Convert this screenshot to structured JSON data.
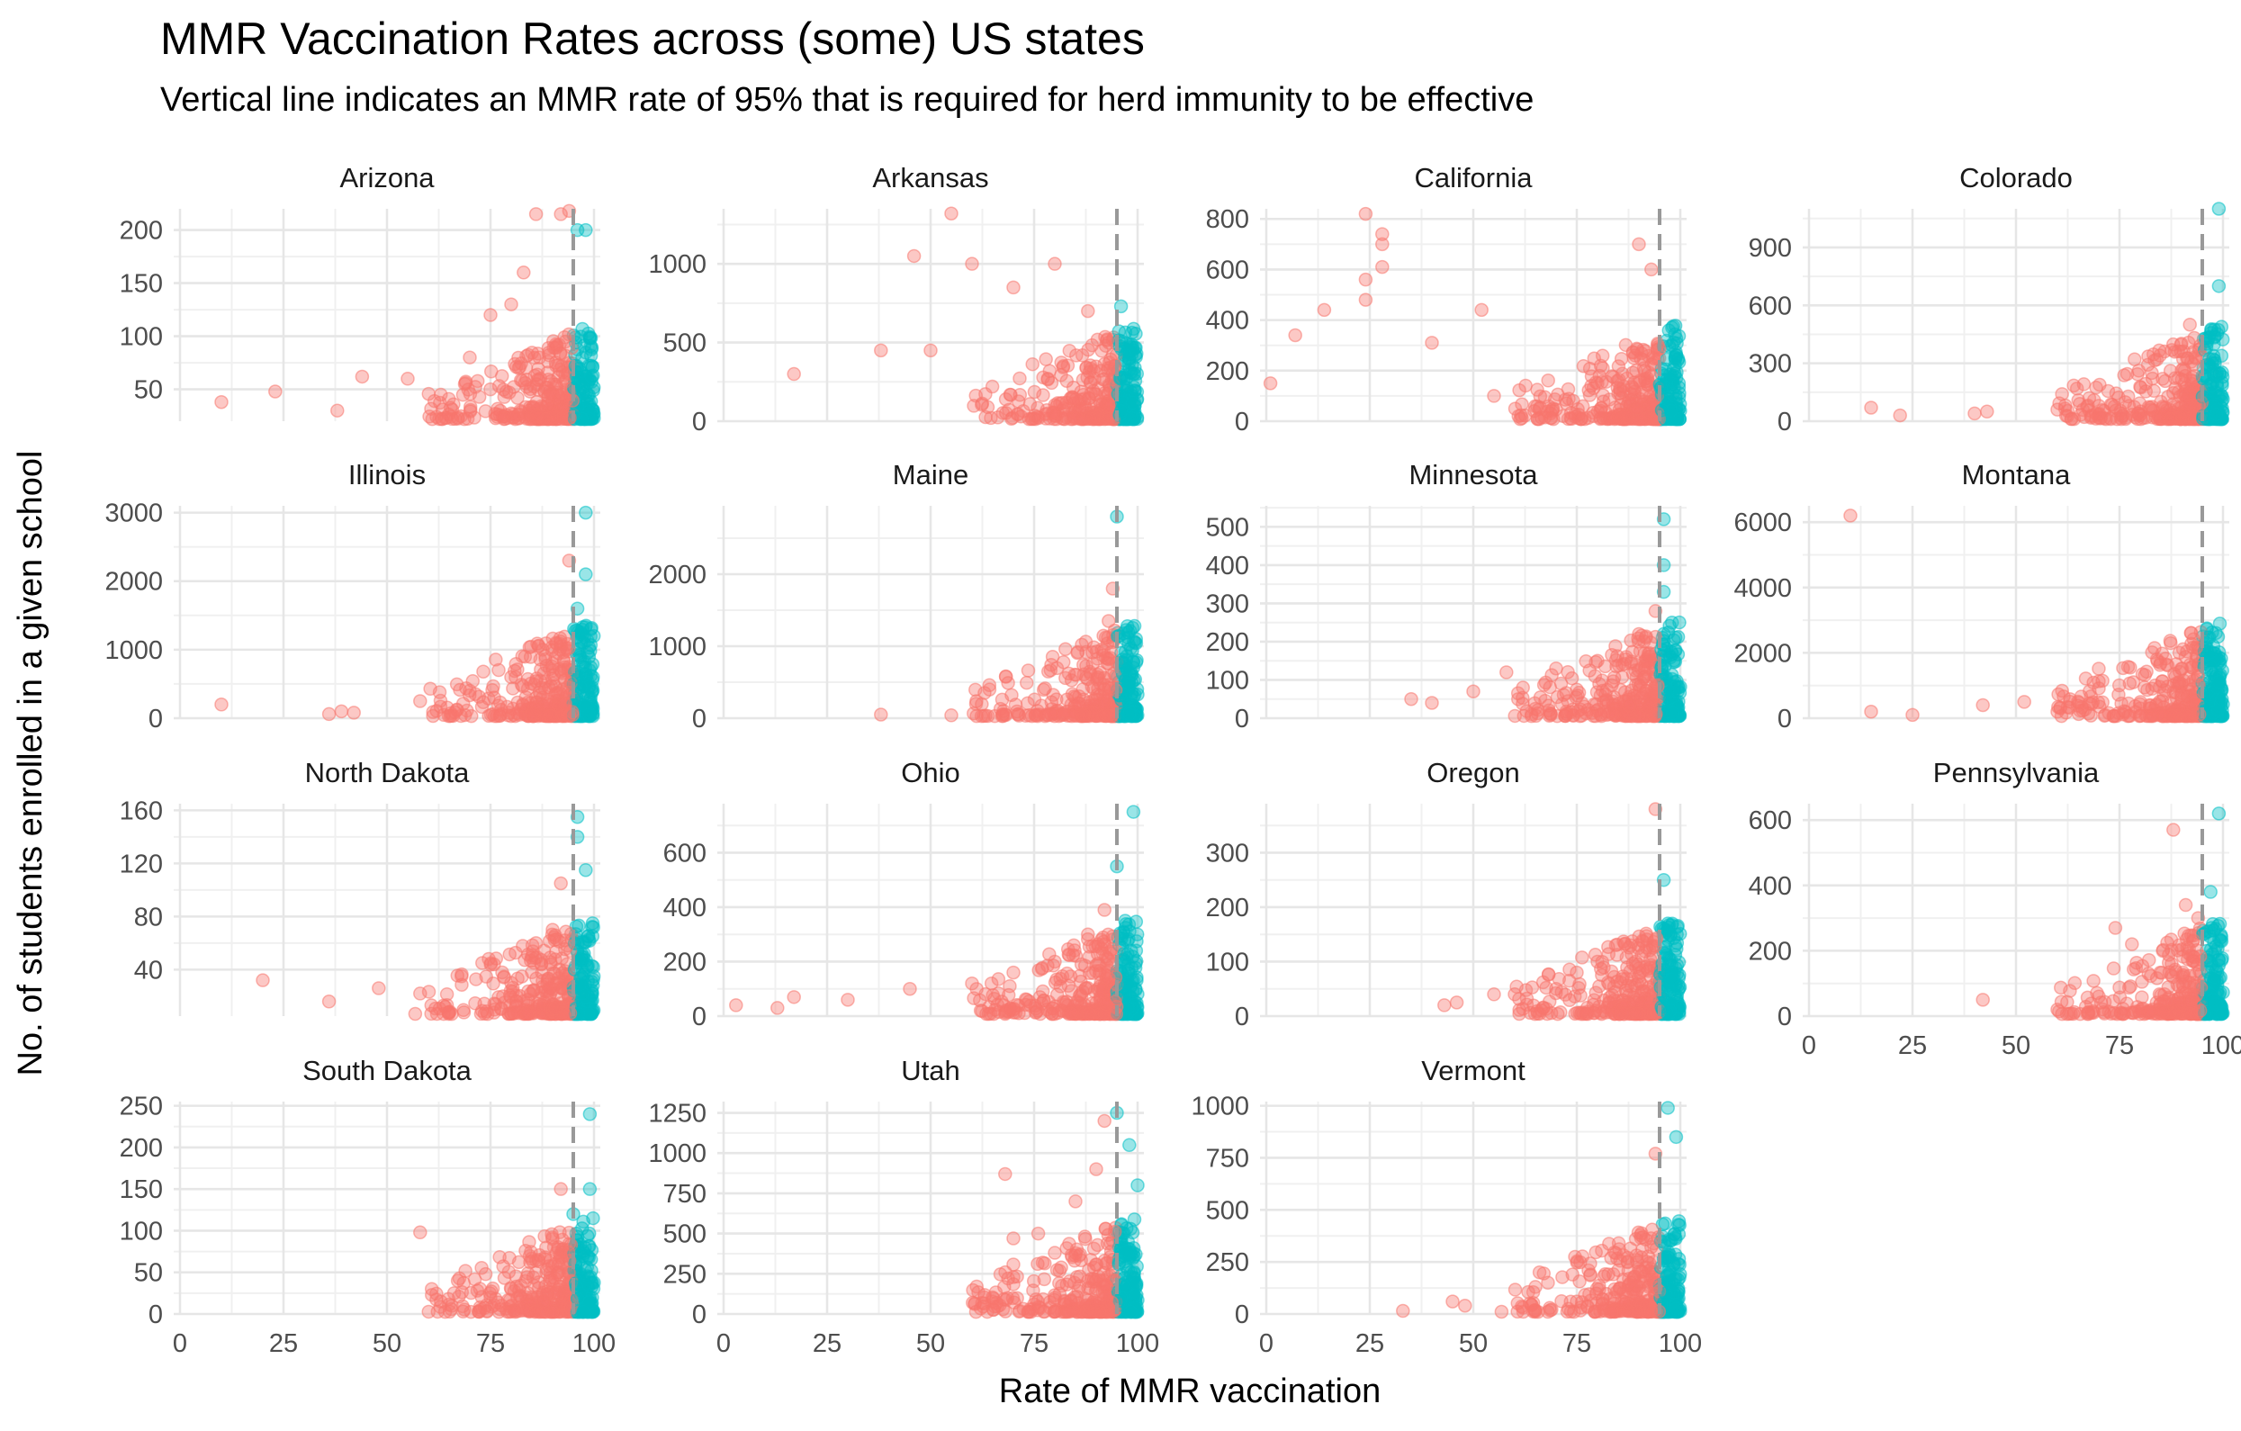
{
  "title": "MMR Vaccination Rates across (some) US states",
  "subtitle": "Vertical line indicates an MMR rate of 95% that is required for herd immunity to be effective",
  "chart_data": {
    "type": "scatter",
    "xlabel": "Rate of MMR vaccination",
    "ylabel": "No. of students enrolled in a given school",
    "xlim": [
      0,
      100
    ],
    "x_ticks": [
      "0",
      "25",
      "50",
      "75",
      "100"
    ],
    "threshold": 95,
    "threshold_style": "dashed vertical line, grey",
    "colors": {
      "below_threshold": "#F8766D",
      "at_or_above_threshold": "#00BFC4",
      "threshold_line": "#999999"
    },
    "point_alpha": 0.4,
    "grid": true,
    "legend": "none",
    "panels": [
      {
        "state": "Arizona",
        "ylim": [
          20,
          220
        ],
        "y_ticks": [
          50,
          100,
          150,
          200
        ],
        "anchors": [
          [
            10,
            38
          ],
          [
            23,
            48
          ],
          [
            38,
            30
          ],
          [
            44,
            62
          ],
          [
            55,
            60
          ],
          [
            63,
            45
          ],
          [
            70,
            80
          ],
          [
            75,
            120
          ],
          [
            80,
            130
          ],
          [
            83,
            160
          ],
          [
            86,
            215
          ],
          [
            92,
            215
          ],
          [
            94,
            218
          ],
          [
            96,
            200
          ],
          [
            98,
            200
          ]
        ]
      },
      {
        "state": "Arkansas",
        "ylim": [
          0,
          1350
        ],
        "y_ticks": [
          0,
          500,
          1000
        ],
        "anchors": [
          [
            17,
            300
          ],
          [
            38,
            450
          ],
          [
            46,
            1050
          ],
          [
            50,
            450
          ],
          [
            55,
            1320
          ],
          [
            60,
            1000
          ],
          [
            70,
            850
          ],
          [
            80,
            1000
          ],
          [
            88,
            700
          ],
          [
            93,
            500
          ],
          [
            96,
            730
          ],
          [
            96,
            280
          ]
        ]
      },
      {
        "state": "California",
        "ylim": [
          0,
          840
        ],
        "y_ticks": [
          0,
          200,
          400,
          600,
          800
        ],
        "anchors": [
          [
            1,
            150
          ],
          [
            7,
            340
          ],
          [
            14,
            440
          ],
          [
            24,
            820
          ],
          [
            24,
            560
          ],
          [
            24,
            480
          ],
          [
            28,
            740
          ],
          [
            28,
            700
          ],
          [
            28,
            610
          ],
          [
            40,
            310
          ],
          [
            52,
            440
          ],
          [
            55,
            100
          ],
          [
            80,
            150
          ],
          [
            90,
            700
          ],
          [
            93,
            600
          ],
          [
            98,
            370
          ],
          [
            98,
            300
          ]
        ]
      },
      {
        "state": "Colorado",
        "ylim": [
          0,
          1100
        ],
        "y_ticks": [
          0,
          300,
          600,
          900
        ],
        "anchors": [
          [
            15,
            70
          ],
          [
            22,
            30
          ],
          [
            40,
            40
          ],
          [
            43,
            50
          ],
          [
            60,
            60
          ],
          [
            70,
            80
          ],
          [
            85,
            100
          ],
          [
            92,
            500
          ],
          [
            96,
            380
          ],
          [
            99,
            1100
          ],
          [
            99,
            700
          ]
        ]
      },
      {
        "state": "Illinois",
        "ylim": [
          0,
          3100
        ],
        "y_ticks": [
          0,
          1000,
          2000,
          3000
        ],
        "anchors": [
          [
            10,
            200
          ],
          [
            36,
            60
          ],
          [
            39,
            100
          ],
          [
            42,
            80
          ],
          [
            58,
            250
          ],
          [
            70,
            400
          ],
          [
            80,
            600
          ],
          [
            90,
            800
          ],
          [
            94,
            2300
          ],
          [
            96,
            1600
          ],
          [
            98,
            3000
          ],
          [
            98,
            2100
          ]
        ]
      },
      {
        "state": "Maine",
        "ylim": [
          0,
          2950
        ],
        "y_ticks": [
          0,
          1000,
          2000
        ],
        "anchors": [
          [
            38,
            50
          ],
          [
            55,
            40
          ],
          [
            68,
            50
          ],
          [
            80,
            60
          ],
          [
            88,
            100
          ],
          [
            92,
            400
          ],
          [
            93,
            1350
          ],
          [
            94,
            1800
          ],
          [
            95,
            2800
          ],
          [
            97,
            680
          ]
        ]
      },
      {
        "state": "Minnesota",
        "ylim": [
          0,
          555
        ],
        "y_ticks": [
          0,
          100,
          200,
          300,
          400,
          500
        ],
        "anchors": [
          [
            35,
            50
          ],
          [
            40,
            40
          ],
          [
            50,
            70
          ],
          [
            58,
            120
          ],
          [
            62,
            80
          ],
          [
            70,
            130
          ],
          [
            80,
            150
          ],
          [
            90,
            220
          ],
          [
            94,
            280
          ],
          [
            96,
            520
          ],
          [
            96,
            400
          ],
          [
            96,
            330
          ],
          [
            98,
            250
          ]
        ]
      },
      {
        "state": "Montana",
        "ylim": [
          0,
          6500
        ],
        "y_ticks": [
          0,
          2000,
          4000,
          6000
        ],
        "anchors": [
          [
            10,
            6200
          ],
          [
            15,
            200
          ],
          [
            25,
            100
          ],
          [
            42,
            400
          ],
          [
            52,
            500
          ],
          [
            60,
            200
          ],
          [
            80,
            300
          ],
          [
            90,
            600
          ],
          [
            96,
            1500
          ],
          [
            98,
            1200
          ]
        ]
      },
      {
        "state": "North Dakota",
        "ylim": [
          5,
          165
        ],
        "y_ticks": [
          40,
          80,
          120,
          160
        ],
        "anchors": [
          [
            20,
            32
          ],
          [
            36,
            16
          ],
          [
            48,
            26
          ],
          [
            58,
            22
          ],
          [
            68,
            35
          ],
          [
            73,
            45
          ],
          [
            80,
            30
          ],
          [
            86,
            60
          ],
          [
            90,
            70
          ],
          [
            92,
            105
          ],
          [
            96,
            155
          ],
          [
            96,
            140
          ],
          [
            98,
            115
          ]
        ]
      },
      {
        "state": "Ohio",
        "ylim": [
          0,
          780
        ],
        "y_ticks": [
          0,
          200,
          400,
          600
        ],
        "anchors": [
          [
            3,
            40
          ],
          [
            13,
            30
          ],
          [
            17,
            70
          ],
          [
            30,
            60
          ],
          [
            45,
            100
          ],
          [
            60,
            120
          ],
          [
            70,
            160
          ],
          [
            80,
            200
          ],
          [
            88,
            300
          ],
          [
            92,
            390
          ],
          [
            95,
            550
          ],
          [
            99,
            750
          ],
          [
            97,
            350
          ]
        ]
      },
      {
        "state": "Oregon",
        "ylim": [
          0,
          390
        ],
        "y_ticks": [
          0,
          100,
          200,
          300
        ],
        "anchors": [
          [
            43,
            20
          ],
          [
            46,
            25
          ],
          [
            55,
            40
          ],
          [
            60,
            40
          ],
          [
            70,
            50
          ],
          [
            75,
            80
          ],
          [
            80,
            100
          ],
          [
            88,
            130
          ],
          [
            94,
            380
          ],
          [
            96,
            250
          ],
          [
            97,
            170
          ]
        ]
      },
      {
        "state": "Pennsylvania",
        "ylim": [
          0,
          650
        ],
        "y_ticks": [
          0,
          200,
          400,
          600
        ],
        "anchors": [
          [
            42,
            50
          ],
          [
            60,
            20
          ],
          [
            70,
            60
          ],
          [
            74,
            270
          ],
          [
            78,
            220
          ],
          [
            82,
            130
          ],
          [
            88,
            570
          ],
          [
            91,
            340
          ],
          [
            94,
            300
          ],
          [
            97,
            380
          ],
          [
            99,
            620
          ]
        ]
      },
      {
        "state": "South Dakota",
        "ylim": [
          0,
          255
        ],
        "y_ticks": [
          0,
          50,
          100,
          150,
          200,
          250
        ],
        "anchors": [
          [
            58,
            98
          ],
          [
            63,
            15
          ],
          [
            75,
            20
          ],
          [
            80,
            30
          ],
          [
            85,
            20
          ],
          [
            90,
            90
          ],
          [
            92,
            150
          ],
          [
            95,
            120
          ],
          [
            99,
            240
          ],
          [
            99,
            150
          ]
        ]
      },
      {
        "state": "Utah",
        "ylim": [
          0,
          1320
        ],
        "y_ticks": [
          0,
          250,
          500,
          750,
          1000,
          1250
        ],
        "anchors": [
          [
            68,
            870
          ],
          [
            70,
            470
          ],
          [
            75,
            60
          ],
          [
            76,
            500
          ],
          [
            80,
            380
          ],
          [
            85,
            700
          ],
          [
            90,
            900
          ],
          [
            92,
            1200
          ],
          [
            95,
            1250
          ],
          [
            98,
            1050
          ],
          [
            100,
            800
          ]
        ]
      },
      {
        "state": "Vermont",
        "ylim": [
          0,
          1020
        ],
        "y_ticks": [
          0,
          250,
          500,
          750,
          1000
        ],
        "anchors": [
          [
            33,
            15
          ],
          [
            45,
            60
          ],
          [
            48,
            40
          ],
          [
            62,
            30
          ],
          [
            65,
            130
          ],
          [
            66,
            200
          ],
          [
            75,
            60
          ],
          [
            88,
            150
          ],
          [
            92,
            250
          ],
          [
            94,
            770
          ],
          [
            97,
            990
          ],
          [
            99,
            850
          ]
        ]
      }
    ]
  }
}
